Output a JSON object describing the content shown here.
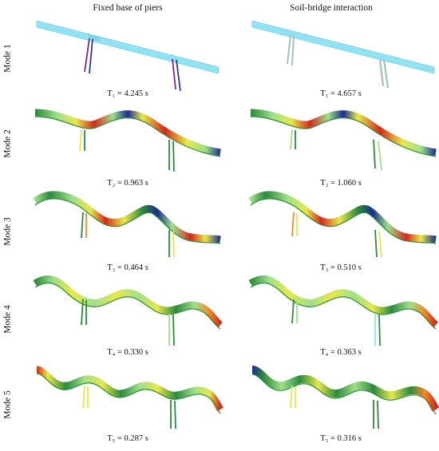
{
  "columns": [
    {
      "title": "Fixed base of piers"
    },
    {
      "title": "Soil-bridge interaction"
    }
  ],
  "modes": [
    {
      "label": "Mode 1",
      "periods": [
        "T₁ = 4.245 s",
        "T₁ = 4.657 s"
      ]
    },
    {
      "label": "Mode 2",
      "periods": [
        "T₂ = 0.963 s",
        "T₂ = 1.060 s"
      ]
    },
    {
      "label": "Mode 3",
      "periods": [
        "T₃ = 0.464 s",
        "T₃ = 0.510 s"
      ]
    },
    {
      "label": "Mode 4",
      "periods": [
        "T₄ = 0.330 s",
        "T₄ = 0.363 s"
      ]
    },
    {
      "label": "Mode 5",
      "periods": [
        "T₅ = 0.287 s",
        "T₅ = 0.316 s"
      ]
    }
  ],
  "colors": {
    "undeformed_deck": "#8fe3f2",
    "colormap": [
      "#1a2d8f",
      "#2c8a3c",
      "#9fe08a",
      "#e8e84a",
      "#f08a2a",
      "#d42a1e"
    ]
  }
}
